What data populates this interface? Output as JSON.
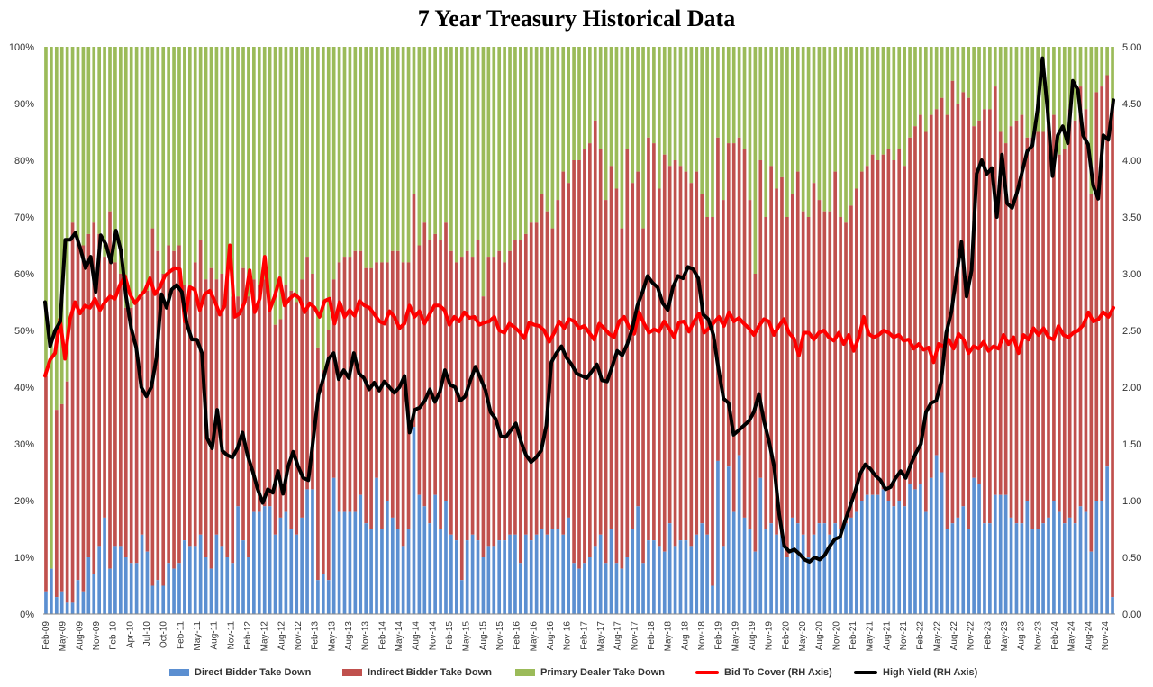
{
  "chart_data": {
    "type": "bar",
    "title": "7 Year Treasury Historical Data",
    "stacked": true,
    "left_axis": {
      "ylim": [
        0,
        100
      ],
      "ticks": [
        "0%",
        "10%",
        "20%",
        "30%",
        "40%",
        "50%",
        "60%",
        "70%",
        "80%",
        "90%",
        "100%"
      ]
    },
    "right_axis": {
      "ylim": [
        0,
        5
      ],
      "ticks": [
        "0.00",
        "0.50",
        "1.00",
        "1.50",
        "2.00",
        "2.50",
        "3.00",
        "3.50",
        "4.00",
        "4.50",
        "5.00"
      ]
    },
    "x_tick_labels": [
      "Feb-09",
      "May-09",
      "Aug-09",
      "Nov-09",
      "Feb-10",
      "Apr-10",
      "Jul-10",
      "Oct-10",
      "Feb-11",
      "May-11",
      "Aug-11",
      "Nov-11",
      "Feb-12",
      "May-12",
      "Aug-12",
      "Nov-12",
      "Feb-13",
      "May-13",
      "Aug-13",
      "Nov-13",
      "Feb-14",
      "May-14",
      "Aug-14",
      "Nov-14",
      "Feb-15",
      "May-15",
      "Aug-15",
      "Nov-15",
      "Feb-16",
      "May-16",
      "Aug-16",
      "Nov-16",
      "Feb-17",
      "May-17",
      "Aug-17",
      "Nov-17",
      "Feb-18",
      "May-18",
      "Aug-18",
      "Nov-18",
      "Feb-19",
      "May-19",
      "Aug-19",
      "Nov-19",
      "Feb-20",
      "May-20",
      "Aug-20",
      "Nov-20",
      "Feb-21",
      "May-21",
      "Aug-21",
      "Nov-21",
      "Feb-22",
      "May-22",
      "Aug-22",
      "Nov-22",
      "Feb-23",
      "May-23",
      "Aug-23",
      "Nov-23",
      "Feb-24",
      "May-24",
      "Aug-24",
      "Nov-24"
    ],
    "series_bars": [
      {
        "name": "Direct Bidder Take Down",
        "color": "#5b8fd1",
        "values": [
          4,
          8,
          3,
          4,
          2,
          2,
          6,
          4,
          10,
          7,
          12,
          17,
          8,
          12,
          12,
          10,
          9,
          9,
          14,
          11,
          5,
          6,
          5,
          9,
          8,
          9,
          13,
          12,
          12,
          14,
          10,
          8,
          14,
          12,
          10,
          9,
          19,
          13,
          10,
          18,
          18,
          19,
          19,
          14,
          17,
          18,
          15,
          14,
          17,
          22,
          22,
          6,
          7,
          6,
          24,
          18,
          18,
          18,
          18,
          21,
          16,
          15,
          24,
          15,
          20,
          17,
          15,
          12,
          15,
          33,
          21,
          19,
          16,
          21,
          15,
          20,
          14,
          13,
          6,
          13,
          14,
          13,
          10,
          12,
          12,
          13,
          13,
          14,
          14,
          9,
          14,
          13,
          14,
          15,
          14,
          15,
          15,
          14,
          17,
          9,
          8,
          9,
          10,
          12,
          14,
          9,
          15,
          9,
          8,
          10,
          15,
          19,
          9,
          13,
          13,
          12,
          11,
          16,
          12,
          13,
          13,
          12,
          14,
          16,
          14,
          5,
          27,
          12,
          26,
          18,
          28,
          17,
          15,
          11,
          24,
          15,
          16,
          14,
          14,
          10,
          17,
          16,
          14,
          10,
          14,
          16,
          16,
          14,
          16,
          15,
          16,
          17,
          18,
          20,
          21,
          21,
          21,
          22,
          20,
          19,
          20,
          19,
          23,
          22,
          23,
          18,
          24,
          28,
          25,
          15,
          16,
          17,
          19,
          15,
          24,
          23,
          16,
          16,
          21,
          21,
          21,
          17,
          16,
          16,
          20,
          15,
          15,
          16,
          17,
          20,
          18,
          16,
          17,
          16,
          19,
          18,
          11,
          20,
          20,
          26,
          3
        ]
      },
      {
        "name": "Indirect Bidder Take Down",
        "color": "#c0504d",
        "values": [
          38,
          0,
          33,
          33,
          39,
          67,
          60,
          61,
          57,
          62,
          55,
          46,
          63,
          50,
          48,
          44,
          45,
          46,
          42,
          46,
          63,
          58,
          55,
          56,
          56,
          56,
          45,
          46,
          50,
          52,
          49,
          53,
          45,
          48,
          50,
          47,
          37,
          48,
          46,
          41,
          40,
          40,
          35,
          37,
          35,
          40,
          42,
          41,
          42,
          41,
          38,
          41,
          36,
          44,
          35,
          44,
          45,
          45,
          46,
          43,
          45,
          46,
          38,
          47,
          42,
          47,
          49,
          50,
          47,
          41,
          44,
          50,
          50,
          46,
          51,
          49,
          50,
          49,
          57,
          51,
          49,
          53,
          46,
          51,
          51,
          51,
          49,
          50,
          52,
          57,
          53,
          56,
          55,
          59,
          57,
          53,
          58,
          64,
          59,
          71,
          72,
          73,
          73,
          75,
          68,
          64,
          64,
          66,
          60,
          72,
          61,
          59,
          59,
          71,
          70,
          63,
          70,
          63,
          68,
          66,
          65,
          64,
          64,
          58,
          56,
          65,
          57,
          61,
          57,
          65,
          56,
          65,
          58,
          49,
          56,
          55,
          63,
          61,
          63,
          60,
          57,
          62,
          57,
          60,
          62,
          57,
          55,
          57,
          62,
          55,
          53,
          55,
          57,
          58,
          58,
          60,
          59,
          59,
          62,
          61,
          62,
          60,
          61,
          64,
          65,
          67,
          64,
          61,
          66,
          73,
          78,
          73,
          73,
          76,
          62,
          64,
          73,
          73,
          72,
          64,
          62,
          69,
          71,
          72,
          64,
          69,
          70,
          69,
          69,
          68,
          63,
          66,
          72,
          71,
          74,
          71,
          63,
          72,
          73,
          69,
          87
        ]
      }
    ],
    "series_top": {
      "name": "Primary Dealer Take Down",
      "color": "#9bbb59",
      "value": "remainder to 100%"
    },
    "series_lines": [
      {
        "name": "Bid To Cover (RH Axis)",
        "axis": "right",
        "color": "#ff0000",
        "values": [
          2.1,
          2.24,
          2.3,
          2.6,
          2.25,
          2.6,
          2.75,
          2.65,
          2.72,
          2.7,
          2.78,
          2.68,
          2.75,
          2.8,
          2.78,
          2.9,
          2.98,
          2.82,
          2.74,
          2.8,
          2.85,
          2.96,
          2.82,
          2.88,
          2.98,
          3.02,
          3.05,
          3.04,
          2.58,
          2.88,
          2.86,
          2.68,
          2.82,
          2.85,
          2.76,
          2.64,
          2.72,
          3.25,
          2.62,
          2.65,
          2.75,
          3.03,
          2.66,
          2.78,
          3.15,
          2.68,
          2.8,
          2.96,
          2.72,
          2.78,
          2.82,
          2.78,
          2.66,
          2.74,
          2.7,
          2.62,
          2.76,
          2.78,
          2.56,
          2.75,
          2.62,
          2.68,
          2.63,
          2.76,
          2.72,
          2.7,
          2.64,
          2.58,
          2.56,
          2.67,
          2.62,
          2.52,
          2.56,
          2.72,
          2.62,
          2.67,
          2.56,
          2.64,
          2.72,
          2.72,
          2.68,
          2.55,
          2.62,
          2.58,
          2.66,
          2.61,
          2.62,
          2.55,
          2.57,
          2.58,
          2.62,
          2.5,
          2.48,
          2.56,
          2.53,
          2.49,
          2.43,
          2.57,
          2.55,
          2.54,
          2.5,
          2.4,
          2.48,
          2.58,
          2.52,
          2.6,
          2.58,
          2.52,
          2.54,
          2.48,
          2.42,
          2.56,
          2.52,
          2.47,
          2.44,
          2.58,
          2.62,
          2.53,
          2.47,
          2.66,
          2.56,
          2.48,
          2.51,
          2.49,
          2.58,
          2.52,
          2.44,
          2.57,
          2.58,
          2.49,
          2.58,
          2.65,
          2.48,
          2.52,
          2.57,
          2.62,
          2.54,
          2.66,
          2.58,
          2.61,
          2.56,
          2.52,
          2.46,
          2.54,
          2.6,
          2.58,
          2.46,
          2.54,
          2.6,
          2.48,
          2.43,
          2.28,
          2.48,
          2.48,
          2.42,
          2.48,
          2.5,
          2.44,
          2.41,
          2.48,
          2.38,
          2.46,
          2.32,
          2.44,
          2.62,
          2.47,
          2.44,
          2.46,
          2.5,
          2.48,
          2.44,
          2.46,
          2.41,
          2.42,
          2.34,
          2.38,
          2.33,
          2.35,
          2.22,
          2.38,
          2.36,
          2.42,
          2.34,
          2.47,
          2.42,
          2.3,
          2.36,
          2.34,
          2.4,
          2.32,
          2.36,
          2.34,
          2.46,
          2.38,
          2.44,
          2.3,
          2.46,
          2.42,
          2.52,
          2.46,
          2.52,
          2.44,
          2.42,
          2.54,
          2.46,
          2.44,
          2.48,
          2.5,
          2.55,
          2.66,
          2.58,
          2.6,
          2.66,
          2.62,
          2.7
        ]
      },
      {
        "name": "High Yield (RH Axis)",
        "axis": "right",
        "color": "#000000",
        "values": [
          2.75,
          2.36,
          2.5,
          2.58,
          3.3,
          3.3,
          3.36,
          3.22,
          3.05,
          3.15,
          2.84,
          3.34,
          3.26,
          3.1,
          3.38,
          3.2,
          2.8,
          2.52,
          2.35,
          2.0,
          1.92,
          2.0,
          2.26,
          2.82,
          2.7,
          2.86,
          2.9,
          2.84,
          2.56,
          2.42,
          2.42,
          2.3,
          1.55,
          1.46,
          1.8,
          1.44,
          1.4,
          1.38,
          1.46,
          1.6,
          1.4,
          1.26,
          1.1,
          0.98,
          1.1,
          1.07,
          1.26,
          1.06,
          1.3,
          1.43,
          1.3,
          1.2,
          1.18,
          1.55,
          1.93,
          2.08,
          2.25,
          2.3,
          2.07,
          2.15,
          2.08,
          2.3,
          2.12,
          2.08,
          1.98,
          2.04,
          1.97,
          2.05,
          2.0,
          1.95,
          2.0,
          2.1,
          1.6,
          1.8,
          1.82,
          1.88,
          1.98,
          1.87,
          1.96,
          2.15,
          2.02,
          2.0,
          1.88,
          1.92,
          2.06,
          2.18,
          2.08,
          1.97,
          1.78,
          1.72,
          1.57,
          1.56,
          1.62,
          1.68,
          1.52,
          1.4,
          1.34,
          1.38,
          1.44,
          1.66,
          2.22,
          2.3,
          2.36,
          2.26,
          2.2,
          2.12,
          2.1,
          2.08,
          2.14,
          2.2,
          2.06,
          2.05,
          2.18,
          2.32,
          2.28,
          2.38,
          2.52,
          2.72,
          2.84,
          2.98,
          2.92,
          2.88,
          2.74,
          2.68,
          2.88,
          2.98,
          2.96,
          3.06,
          3.04,
          2.96,
          2.64,
          2.6,
          2.46,
          2.16,
          1.9,
          1.86,
          1.58,
          1.62,
          1.66,
          1.7,
          1.78,
          1.94,
          1.7,
          1.52,
          1.3,
          0.88,
          0.6,
          0.55,
          0.57,
          0.53,
          0.48,
          0.46,
          0.5,
          0.48,
          0.52,
          0.6,
          0.66,
          0.68,
          0.82,
          0.95,
          1.08,
          1.24,
          1.32,
          1.28,
          1.22,
          1.18,
          1.1,
          1.12,
          1.2,
          1.26,
          1.2,
          1.32,
          1.42,
          1.5,
          1.78,
          1.86,
          1.88,
          2.05,
          2.48,
          2.66,
          2.98,
          3.28,
          2.8,
          3.03,
          3.88,
          4.0,
          3.88,
          3.93,
          3.5,
          4.05,
          3.62,
          3.58,
          3.72,
          3.9,
          4.08,
          4.13,
          4.44,
          4.9,
          4.45,
          3.86,
          4.22,
          4.3,
          4.15,
          4.7,
          4.62,
          4.22,
          4.14,
          3.78,
          3.66,
          4.22,
          4.18,
          4.53
        ]
      }
    ]
  },
  "legend": {
    "direct": "Direct Bidder Take Down",
    "indirect": "Indirect Bidder Take Down",
    "dealer": "Primary Dealer Take Down",
    "btc": "Bid To Cover (RH Axis)",
    "yield": "High Yield (RH Axis)"
  },
  "colors": {
    "direct": "#5b8fd1",
    "indirect": "#c0504d",
    "dealer": "#9bbb59",
    "btc": "#ff0000",
    "yield": "#000000"
  }
}
